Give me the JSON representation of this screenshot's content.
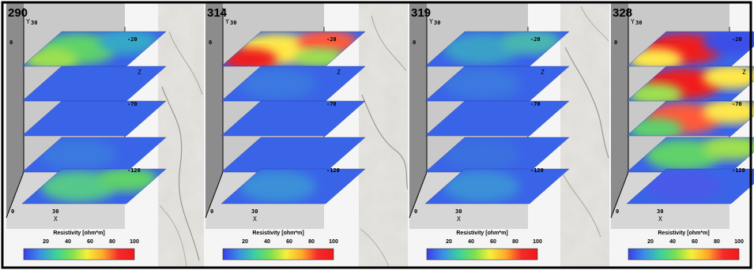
{
  "panels": [
    {
      "label": "290",
      "slices": [
        {
          "blobs": [
            {
              "color": "#5fd26a"
            },
            {
              "color": "#35a8c8"
            },
            {
              "color": "#9ee04f"
            }
          ]
        },
        {
          "blobs": []
        },
        {
          "blobs": []
        },
        {
          "blobs": [
            {
              "color": "#3a78e0"
            }
          ]
        },
        {
          "blobs": [
            {
              "color": "#55c88a"
            },
            {
              "color": "#5fd26a"
            }
          ]
        }
      ]
    },
    {
      "label": "314",
      "slices": [
        {
          "blobs": [
            {
              "color": "#ffe84a"
            },
            {
              "color": "#ff5a3a"
            },
            {
              "color": "#f01e1e"
            },
            {
              "color": "#9ee04f"
            }
          ]
        },
        {
          "blobs": [
            {
              "color": "#3a78e0"
            }
          ]
        },
        {
          "blobs": []
        },
        {
          "blobs": []
        },
        {
          "blobs": [
            {
              "color": "#3a90d8"
            }
          ]
        }
      ]
    },
    {
      "label": "319",
      "slices": [
        {
          "blobs": [
            {
              "color": "#3aa0c8"
            },
            {
              "color": "#48b6b0"
            }
          ]
        },
        {
          "blobs": [
            {
              "color": "#3a78e0"
            }
          ]
        },
        {
          "blobs": []
        },
        {
          "blobs": [
            {
              "color": "#3a70e0"
            }
          ]
        },
        {
          "blobs": [
            {
              "color": "#3a90d8"
            }
          ]
        }
      ]
    },
    {
      "label": "328",
      "slices": [
        {
          "blobs": [
            {
              "color": "#f01e1e"
            },
            {
              "color": "#3a4ee8"
            },
            {
              "color": "#ffe84a"
            }
          ]
        },
        {
          "blobs": [
            {
              "color": "#f01e1e"
            },
            {
              "color": "#ffe84a"
            },
            {
              "color": "#9ee04f"
            }
          ]
        },
        {
          "blobs": [
            {
              "color": "#ff5a3a"
            },
            {
              "color": "#ffe84a"
            },
            {
              "color": "#5fd26a"
            }
          ]
        },
        {
          "blobs": [
            {
              "color": "#5fd26a"
            },
            {
              "color": "#9ee04f"
            }
          ]
        },
        {
          "blobs": [
            {
              "color": "#4a5ae8"
            }
          ]
        }
      ]
    }
  ],
  "axes": {
    "y_label": "Y",
    "y_tick": "30",
    "y_zero": "0",
    "z_label": "Z",
    "z_ticks": [
      "-20",
      "-70",
      "-120"
    ],
    "x_label": "X",
    "x_ticks": [
      "0",
      "30"
    ]
  },
  "colorbar": {
    "title": "Resistivity [ohm*m]",
    "ticks": [
      "20",
      "40",
      "60",
      "80",
      "100"
    ],
    "stops": [
      "#3a3ee8",
      "#3a8ee8",
      "#3ad0a0",
      "#7ae050",
      "#f5f03a",
      "#ffaa2a",
      "#f52a2a",
      "#f01a1a"
    ]
  },
  "colors": {
    "base_slice": "#3a64e8",
    "wall_left": "#8c8c8c",
    "wall_back": "#c9c9c9",
    "floor": "#d6d6d6",
    "map_bg": "#dcdad5"
  }
}
